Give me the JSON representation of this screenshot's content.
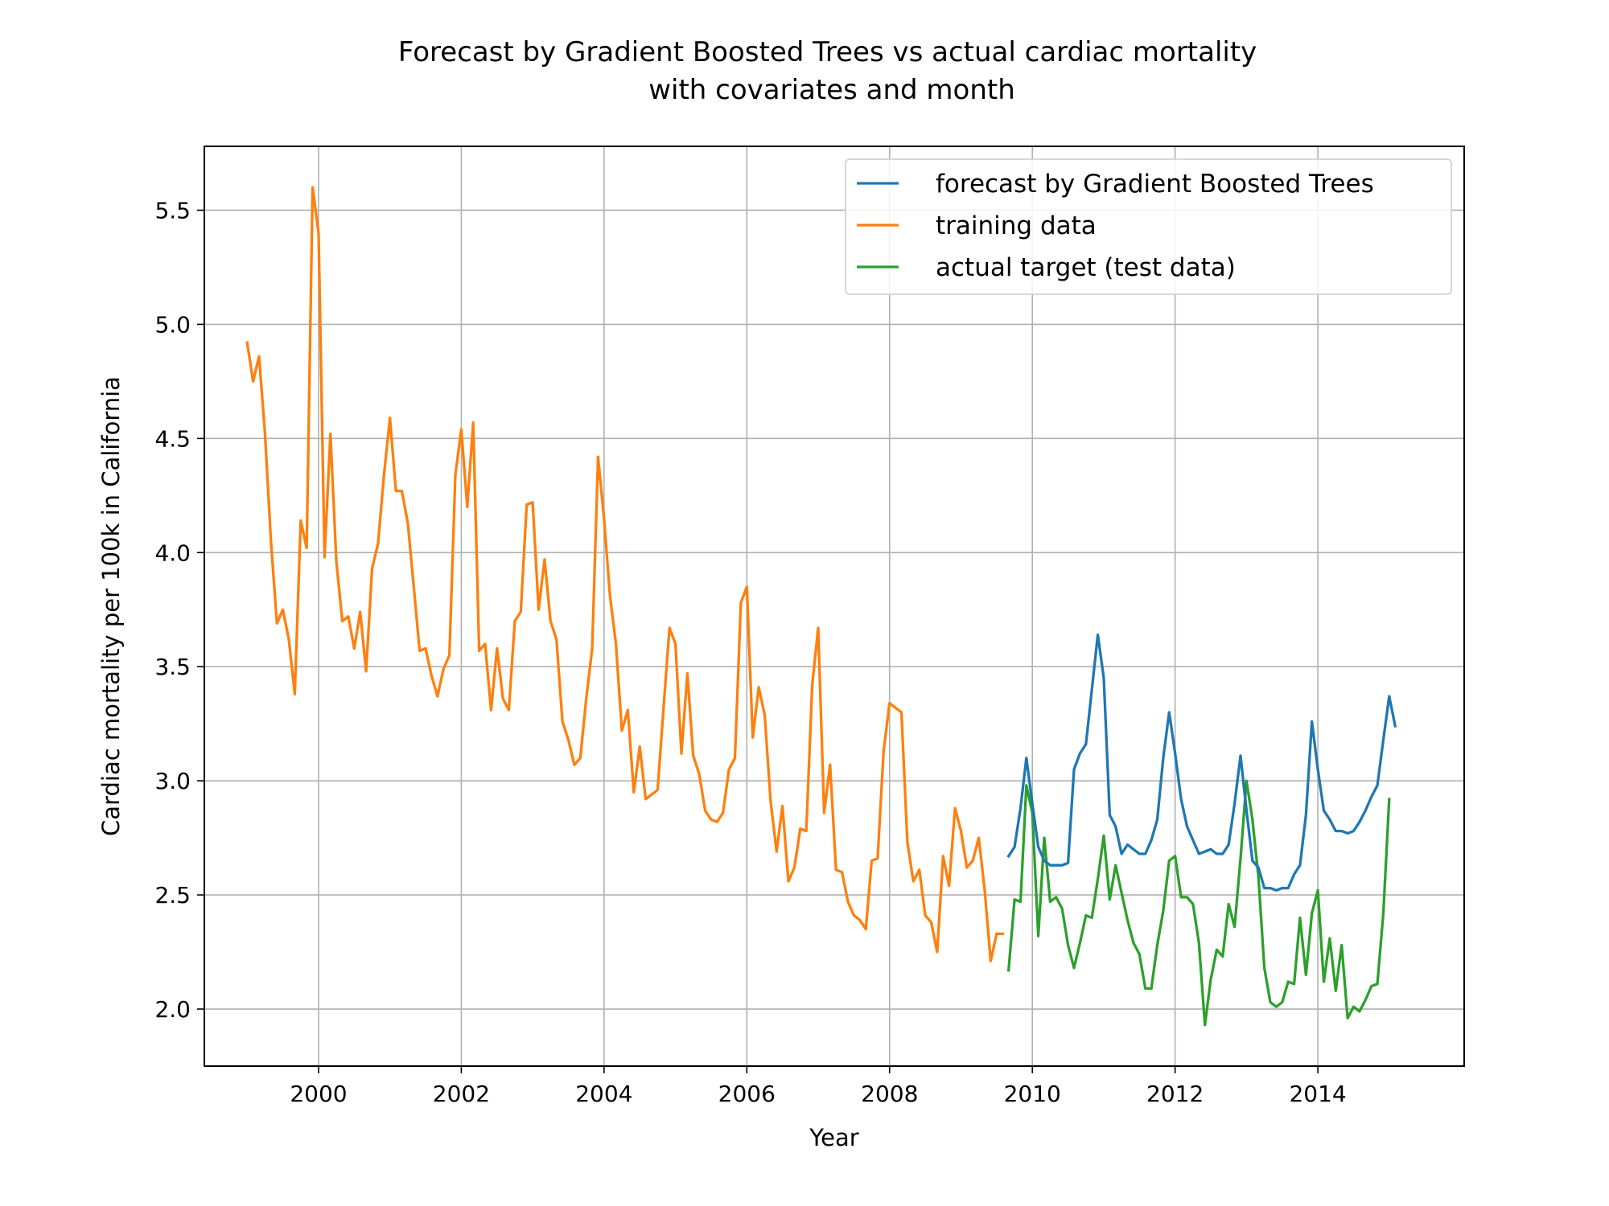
{
  "chart_data": {
    "type": "line",
    "title": "Forecast by Gradient Boosted Trees vs actual cardiac mortality\nwith covariates and month",
    "xlabel": "Year",
    "ylabel": "Cardiac mortality per 100k in California",
    "xlim": [
      1998.4,
      2016.05
    ],
    "ylim": [
      1.75,
      5.78
    ],
    "xticks": [
      2000,
      2002,
      2004,
      2006,
      2008,
      2010,
      2012,
      2014
    ],
    "xtick_labels": [
      "2000",
      "2002",
      "2004",
      "2006",
      "2008",
      "2010",
      "2012",
      "2014"
    ],
    "yticks": [
      2.0,
      2.5,
      3.0,
      3.5,
      4.0,
      4.5,
      5.0,
      5.5
    ],
    "ytick_labels": [
      "2.0",
      "2.5",
      "3.0",
      "3.5",
      "4.0",
      "4.5",
      "5.0",
      "5.5"
    ],
    "grid": true,
    "legend_position": "top-right",
    "x_units": "years (decimal, monthly steps)",
    "series": [
      {
        "name": "forecast by Gradient Boosted Trees",
        "color": "#1f77b4",
        "x_start": 2009.667,
        "step": 0.08333,
        "values": [
          2.67,
          2.71,
          2.88,
          3.1,
          2.9,
          2.71,
          2.65,
          2.63,
          2.63,
          2.63,
          2.64,
          3.05,
          3.12,
          3.16,
          3.4,
          3.64,
          3.45,
          2.85,
          2.8,
          2.68,
          2.72,
          2.7,
          2.68,
          2.68,
          2.74,
          2.83,
          3.1,
          3.3,
          3.12,
          2.92,
          2.8,
          2.74,
          2.68,
          2.69,
          2.7,
          2.68,
          2.68,
          2.72,
          2.9,
          3.11,
          2.87,
          2.65,
          2.62,
          2.53,
          2.53,
          2.52,
          2.53,
          2.53,
          2.59,
          2.63,
          2.85,
          3.26,
          3.05,
          2.87,
          2.83,
          2.78,
          2.78,
          2.77,
          2.78,
          2.82,
          2.87,
          2.93,
          2.98,
          3.18,
          3.37,
          3.24
        ]
      },
      {
        "name": "training data",
        "color": "#ff7f0e",
        "x_start": 1999.0,
        "step": 0.08333,
        "values": [
          4.92,
          4.75,
          4.86,
          4.52,
          4.05,
          3.69,
          3.75,
          3.62,
          3.38,
          4.14,
          4.02,
          5.6,
          5.4,
          3.98,
          4.52,
          3.96,
          3.7,
          3.72,
          3.58,
          3.74,
          3.48,
          3.93,
          4.04,
          4.34,
          4.59,
          4.27,
          4.27,
          4.13,
          3.85,
          3.57,
          3.58,
          3.46,
          3.37,
          3.49,
          3.55,
          4.34,
          4.54,
          4.2,
          4.57,
          3.57,
          3.6,
          3.31,
          3.58,
          3.36,
          3.31,
          3.7,
          3.74,
          4.21,
          4.22,
          3.75,
          3.97,
          3.7,
          3.62,
          3.26,
          3.18,
          3.07,
          3.1,
          3.36,
          3.58,
          4.42,
          4.15,
          3.81,
          3.6,
          3.22,
          3.31,
          2.95,
          3.15,
          2.92,
          2.94,
          2.96,
          3.32,
          3.67,
          3.6,
          3.12,
          3.47,
          3.11,
          3.03,
          2.87,
          2.83,
          2.82,
          2.86,
          3.05,
          3.1,
          3.78,
          3.85,
          3.19,
          3.41,
          3.29,
          2.91,
          2.69,
          2.89,
          2.56,
          2.62,
          2.79,
          2.78,
          3.42,
          3.67,
          2.86,
          3.07,
          2.61,
          2.6,
          2.47,
          2.41,
          2.39,
          2.35,
          2.65,
          2.66,
          3.13,
          3.34,
          3.32,
          3.3,
          2.73,
          2.56,
          2.61,
          2.41,
          2.38,
          2.25,
          2.67,
          2.54,
          2.88,
          2.78,
          2.62,
          2.65,
          2.75,
          2.52,
          2.21,
          2.33,
          2.33
        ]
      },
      {
        "name": "actual target (test data)",
        "color": "#2ca02c",
        "x_start": 2009.667,
        "step": 0.08333,
        "values": [
          2.17,
          2.48,
          2.47,
          2.98,
          2.86,
          2.32,
          2.75,
          2.47,
          2.49,
          2.44,
          2.28,
          2.18,
          2.29,
          2.41,
          2.4,
          2.57,
          2.76,
          2.48,
          2.63,
          2.51,
          2.39,
          2.29,
          2.24,
          2.09,
          2.09,
          2.28,
          2.43,
          2.65,
          2.67,
          2.49,
          2.49,
          2.46,
          2.29,
          1.93,
          2.13,
          2.26,
          2.23,
          2.46,
          2.36,
          2.66,
          3.0,
          2.83,
          2.58,
          2.18,
          2.03,
          2.01,
          2.03,
          2.12,
          2.11,
          2.4,
          2.15,
          2.42,
          2.52,
          2.12,
          2.31,
          2.08,
          2.28,
          1.96,
          2.01,
          1.99,
          2.04,
          2.1,
          2.11,
          2.42,
          2.92
        ]
      }
    ]
  }
}
